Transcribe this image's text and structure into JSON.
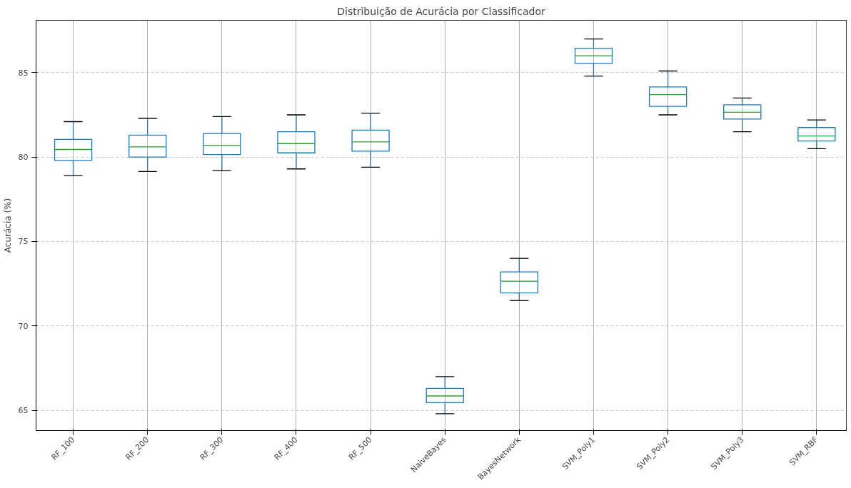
{
  "chart_data": {
    "type": "box",
    "title": "Distribuição de Acurácia por Classificador",
    "ylabel": "Acurácia (%)",
    "categories": [
      "RF_100",
      "RF_200",
      "RF_300",
      "RF_400",
      "RF_500",
      "NaiveBayes",
      "BayesNetwork",
      "SVM_Poly1",
      "SVM_Poly2",
      "SVM_Poly3",
      "SVM_RBF"
    ],
    "series": [
      {
        "color": "#1f77b4",
        "boxes": [
          {
            "low": 78.9,
            "q1": 79.8,
            "median": 80.45,
            "q3": 81.05,
            "high": 82.1
          },
          {
            "low": 79.15,
            "q1": 80.0,
            "median": 80.6,
            "q3": 81.3,
            "high": 82.3
          },
          {
            "low": 79.2,
            "q1": 80.15,
            "median": 80.7,
            "q3": 81.4,
            "high": 82.4
          },
          {
            "low": 79.3,
            "q1": 80.25,
            "median": 80.8,
            "q3": 81.5,
            "high": 82.5
          },
          {
            "low": 79.4,
            "q1": 80.35,
            "median": 80.9,
            "q3": 81.6,
            "high": 82.6
          },
          {
            "low": 64.8,
            "q1": 65.45,
            "median": 65.85,
            "q3": 66.3,
            "high": 67.0
          },
          {
            "low": 71.5,
            "q1": 71.95,
            "median": 72.65,
            "q3": 73.2,
            "high": 74.0
          },
          {
            "low": 84.8,
            "q1": 85.55,
            "median": 86.0,
            "q3": 86.45,
            "high": 87.0
          },
          {
            "low": 82.5,
            "q1": 83.0,
            "median": 83.7,
            "q3": 84.15,
            "high": 85.1
          },
          {
            "low": 81.5,
            "q1": 82.25,
            "median": 82.65,
            "q3": 83.1,
            "high": 83.5
          },
          {
            "low": 80.5,
            "q1": 80.95,
            "median": 81.25,
            "q3": 81.75,
            "high": 82.2
          }
        ]
      }
    ],
    "ylim": [
      63.8,
      88.1
    ],
    "yticks": [
      65,
      70,
      75,
      80,
      85
    ],
    "grid": true
  }
}
